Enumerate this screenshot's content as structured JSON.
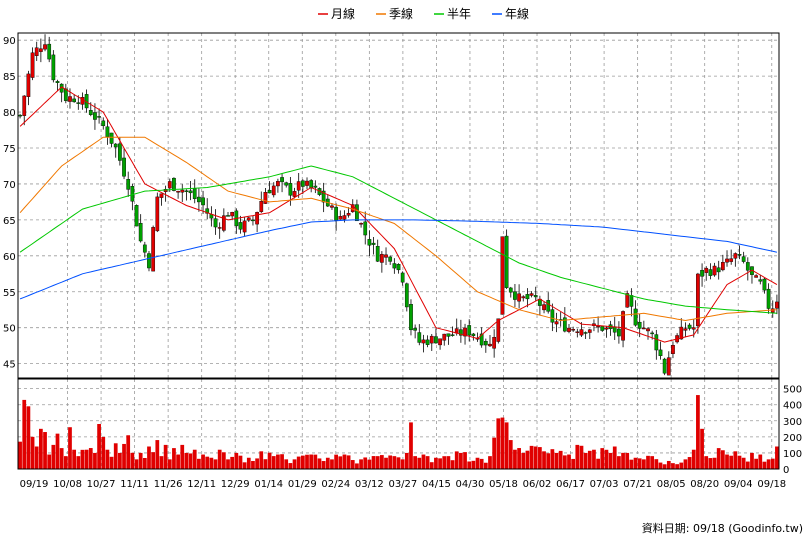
{
  "legend": [
    {
      "label": "月線",
      "color": "#e00000"
    },
    {
      "label": "季線",
      "color": "#f07800"
    },
    {
      "label": "半年",
      "color": "#00c800"
    },
    {
      "label": "年線",
      "color": "#0050ff"
    }
  ],
  "footer": {
    "caption": "資料日期: 09/18 (Goodinfo.tw)"
  },
  "colors": {
    "up": "#e00000",
    "down": "#00a000",
    "volume": "#e00000",
    "grid": "#9a9a9a",
    "frame": "#000000"
  },
  "chart_data": [
    {
      "type": "candlestick",
      "ylim": [
        43,
        91
      ],
      "y_ticks": [
        45,
        50,
        55,
        60,
        65,
        70,
        75,
        80,
        85,
        90
      ],
      "x_tick_labels": [
        "09/19",
        "10/08",
        "10/27",
        "11/11",
        "11/26",
        "12/11",
        "12/29",
        "01/14",
        "01/29",
        "02/24",
        "03/12",
        "03/27",
        "04/15",
        "04/30",
        "05/18",
        "06/02",
        "06/17",
        "07/03",
        "07/21",
        "08/05",
        "08/20",
        "09/04",
        "09/18"
      ],
      "close_anchors": [
        [
          0,
          79.5
        ],
        [
          3,
          88
        ],
        [
          6,
          90
        ],
        [
          8,
          85
        ],
        [
          11,
          82
        ],
        [
          14,
          82
        ],
        [
          17,
          80
        ],
        [
          20,
          78
        ],
        [
          23,
          75
        ],
        [
          26,
          70
        ],
        [
          29,
          62
        ],
        [
          31,
          59
        ],
        [
          33,
          68
        ],
        [
          36,
          70
        ],
        [
          40,
          69
        ],
        [
          44,
          67
        ],
        [
          47,
          64
        ],
        [
          50,
          66
        ],
        [
          53,
          64
        ],
        [
          56,
          65
        ],
        [
          59,
          69
        ],
        [
          62,
          70
        ],
        [
          65,
          69
        ],
        [
          68,
          70
        ],
        [
          71,
          69
        ],
        [
          74,
          67
        ],
        [
          77,
          65
        ],
        [
          80,
          67
        ],
        [
          83,
          63
        ],
        [
          86,
          60
        ],
        [
          89,
          60
        ],
        [
          92,
          57
        ],
        [
          94,
          50
        ],
        [
          96,
          48
        ],
        [
          100,
          48.5
        ],
        [
          104,
          49
        ],
        [
          108,
          49.5
        ],
        [
          112,
          48
        ],
        [
          113,
          47.5
        ],
        [
          115,
          51
        ],
        [
          116,
          63
        ],
        [
          117,
          56
        ],
        [
          120,
          54
        ],
        [
          124,
          54
        ],
        [
          128,
          51
        ],
        [
          132,
          50
        ],
        [
          136,
          50
        ],
        [
          140,
          50
        ],
        [
          144,
          49
        ],
        [
          146,
          54
        ],
        [
          148,
          51
        ],
        [
          150,
          50
        ],
        [
          152,
          49
        ],
        [
          154,
          46
        ],
        [
          155,
          44
        ],
        [
          157,
          48
        ],
        [
          160,
          50
        ],
        [
          162,
          50
        ],
        [
          163,
          57
        ],
        [
          165,
          58
        ],
        [
          167,
          58
        ],
        [
          170,
          59
        ],
        [
          172,
          60
        ],
        [
          174,
          59
        ],
        [
          176,
          57
        ],
        [
          178,
          56
        ],
        [
          180,
          53
        ],
        [
          181,
          53
        ],
        [
          182,
          54
        ]
      ],
      "series": [
        {
          "name": "月線",
          "values": [
            [
              0,
              78
            ],
            [
              10,
              83.5
            ],
            [
              20,
              80
            ],
            [
              30,
              70
            ],
            [
              40,
              67
            ],
            [
              50,
              65
            ],
            [
              60,
              66
            ],
            [
              70,
              69.5
            ],
            [
              80,
              67
            ],
            [
              90,
              61
            ],
            [
              100,
              50
            ],
            [
              110,
              48.5
            ],
            [
              115,
              51
            ],
            [
              125,
              54
            ],
            [
              135,
              50.5
            ],
            [
              145,
              50
            ],
            [
              155,
              48
            ],
            [
              162,
              49
            ],
            [
              170,
              56
            ],
            [
              176,
              58
            ],
            [
              182,
              56
            ]
          ]
        },
        {
          "name": "季線",
          "values": [
            [
              0,
              66
            ],
            [
              10,
              72.5
            ],
            [
              20,
              76.5
            ],
            [
              30,
              76.5
            ],
            [
              40,
              73
            ],
            [
              50,
              69
            ],
            [
              60,
              67.5
            ],
            [
              70,
              68
            ],
            [
              80,
              66.5
            ],
            [
              90,
              64.5
            ],
            [
              100,
              60
            ],
            [
              110,
              55
            ],
            [
              120,
              52.5
            ],
            [
              130,
              51
            ],
            [
              140,
              51.5
            ],
            [
              150,
              52
            ],
            [
              160,
              51
            ],
            [
              170,
              52
            ],
            [
              182,
              52.5
            ]
          ]
        },
        {
          "name": "半年",
          "values": [
            [
              0,
              60.5
            ],
            [
              15,
              66.5
            ],
            [
              30,
              69
            ],
            [
              45,
              69.5
            ],
            [
              60,
              71
            ],
            [
              70,
              72.5
            ],
            [
              80,
              71
            ],
            [
              90,
              68
            ],
            [
              100,
              65
            ],
            [
              110,
              62
            ],
            [
              120,
              59
            ],
            [
              130,
              57
            ],
            [
              140,
              55.5
            ],
            [
              150,
              54
            ],
            [
              160,
              53
            ],
            [
              170,
              52.5
            ],
            [
              182,
              52
            ]
          ]
        },
        {
          "name": "年線",
          "values": [
            [
              0,
              54
            ],
            [
              15,
              57.5
            ],
            [
              30,
              59.5
            ],
            [
              45,
              61.5
            ],
            [
              60,
              63.5
            ],
            [
              70,
              64.7
            ],
            [
              80,
              65
            ],
            [
              95,
              65
            ],
            [
              110,
              64.8
            ],
            [
              125,
              64.5
            ],
            [
              140,
              64
            ],
            [
              155,
              63
            ],
            [
              170,
              62
            ],
            [
              182,
              60.5
            ]
          ]
        }
      ]
    },
    {
      "type": "bar",
      "ylim": [
        0,
        560
      ],
      "y_ticks": [
        0,
        100,
        200,
        300,
        400,
        500
      ],
      "spikes": [
        [
          0,
          170
        ],
        [
          1,
          430
        ],
        [
          2,
          390
        ],
        [
          3,
          200
        ],
        [
          4,
          140
        ],
        [
          5,
          250
        ],
        [
          6,
          230
        ],
        [
          7,
          90
        ],
        [
          8,
          150
        ],
        [
          9,
          220
        ],
        [
          10,
          130
        ],
        [
          11,
          80
        ],
        [
          12,
          260
        ],
        [
          13,
          120
        ],
        [
          14,
          80
        ],
        [
          16,
          120
        ],
        [
          18,
          100
        ],
        [
          19,
          280
        ],
        [
          21,
          120
        ],
        [
          23,
          160
        ],
        [
          24,
          100
        ],
        [
          26,
          210
        ],
        [
          28,
          60
        ],
        [
          29,
          100
        ],
        [
          31,
          140
        ],
        [
          33,
          180
        ],
        [
          34,
          80
        ],
        [
          35,
          150
        ],
        [
          36,
          60
        ],
        [
          37,
          130
        ],
        [
          38,
          90
        ],
        [
          39,
          150
        ],
        [
          40,
          100
        ],
        [
          42,
          120
        ],
        [
          44,
          90
        ],
        [
          46,
          70
        ],
        [
          48,
          120
        ],
        [
          50,
          60
        ],
        [
          52,
          100
        ],
        [
          55,
          70
        ],
        [
          58,
          110
        ],
        [
          62,
          90
        ],
        [
          66,
          60
        ],
        [
          70,
          90
        ],
        [
          74,
          70
        ],
        [
          78,
          90
        ],
        [
          82,
          60
        ],
        [
          86,
          80
        ],
        [
          88,
          70
        ],
        [
          90,
          80
        ],
        [
          92,
          60
        ],
        [
          93,
          100
        ],
        [
          94,
          290
        ],
        [
          95,
          80
        ],
        [
          97,
          90
        ],
        [
          100,
          70
        ],
        [
          103,
          80
        ],
        [
          106,
          100
        ],
        [
          110,
          70
        ],
        [
          113,
          80
        ],
        [
          115,
          315
        ],
        [
          116,
          320
        ],
        [
          117,
          290
        ],
        [
          118,
          180
        ],
        [
          119,
          120
        ],
        [
          121,
          100
        ],
        [
          124,
          140
        ],
        [
          126,
          110
        ],
        [
          129,
          100
        ],
        [
          132,
          90
        ],
        [
          134,
          150
        ],
        [
          136,
          100
        ],
        [
          138,
          120
        ],
        [
          140,
          130
        ],
        [
          142,
          100
        ],
        [
          143,
          140
        ],
        [
          144,
          80
        ],
        [
          146,
          100
        ],
        [
          148,
          70
        ],
        [
          150,
          60
        ],
        [
          152,
          80
        ],
        [
          154,
          40
        ],
        [
          156,
          50
        ],
        [
          158,
          30
        ],
        [
          160,
          60
        ],
        [
          162,
          120
        ],
        [
          163,
          460
        ],
        [
          164,
          250
        ],
        [
          165,
          80
        ],
        [
          167,
          70
        ],
        [
          168,
          130
        ],
        [
          170,
          90
        ],
        [
          172,
          110
        ],
        [
          174,
          70
        ],
        [
          176,
          100
        ],
        [
          178,
          90
        ],
        [
          180,
          60
        ],
        [
          182,
          140
        ]
      ]
    }
  ]
}
